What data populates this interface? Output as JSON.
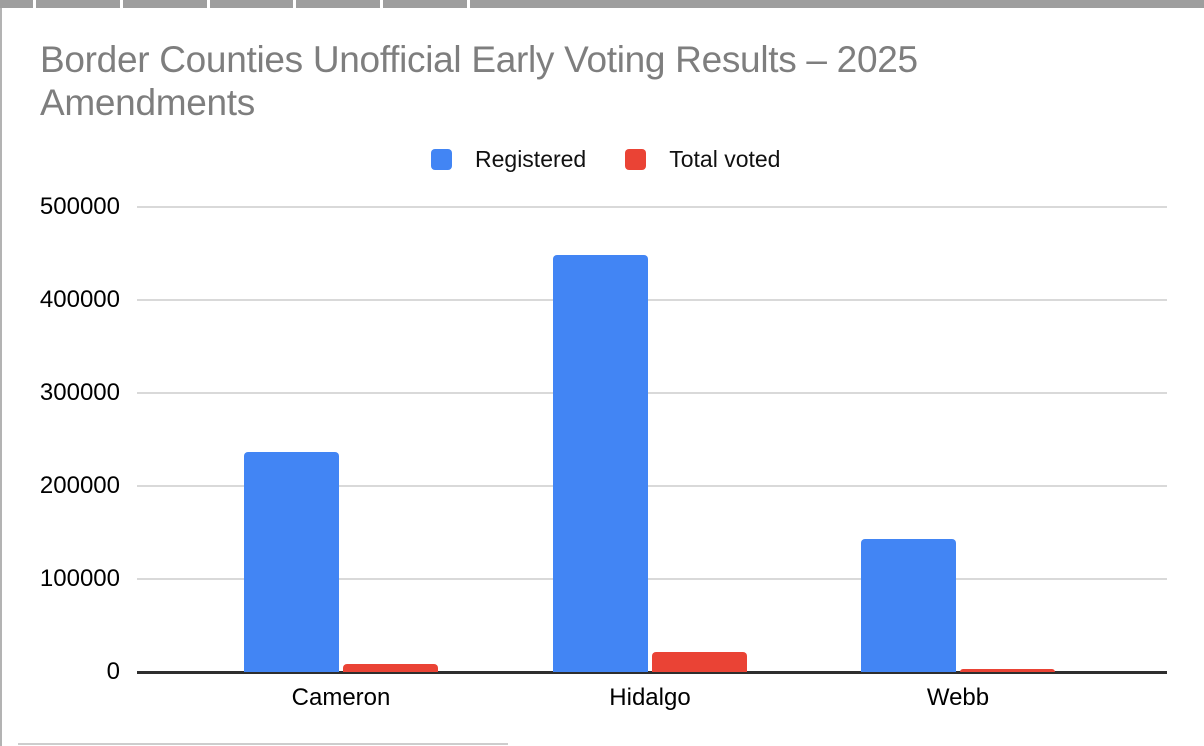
{
  "frame": {
    "top_strip_color": "#9e9e9e",
    "left_border_color": "#b3b3b3",
    "bottom_border_color": "#cdcdcd"
  },
  "chart": {
    "title_line1": "Border Counties Unofficial Early Voting Results – 2025",
    "title_line2": "Amendments",
    "title_color": "#7e7e7e"
  },
  "chart_data": {
    "type": "bar",
    "title": "Border Counties Unofficial Early Voting Results – 2025 Amendments",
    "categories": [
      "Cameron",
      "Hidalgo",
      "Webb"
    ],
    "series": [
      {
        "name": "Registered",
        "color": "#4285F4",
        "values": [
          237000,
          448000,
          143000
        ]
      },
      {
        "name": "Total voted",
        "color": "#EA4335",
        "values": [
          9000,
          22000,
          3000
        ]
      }
    ],
    "xlabel": "",
    "ylabel": "",
    "ylim": [
      0,
      500000
    ],
    "yticks": [
      0,
      100000,
      200000,
      300000,
      400000,
      500000
    ],
    "grid": true,
    "legend_position": "top",
    "gridline_color": "#d9d9d9",
    "baseline_color": "#2e2e2e",
    "axis_text_color": "#000000"
  }
}
